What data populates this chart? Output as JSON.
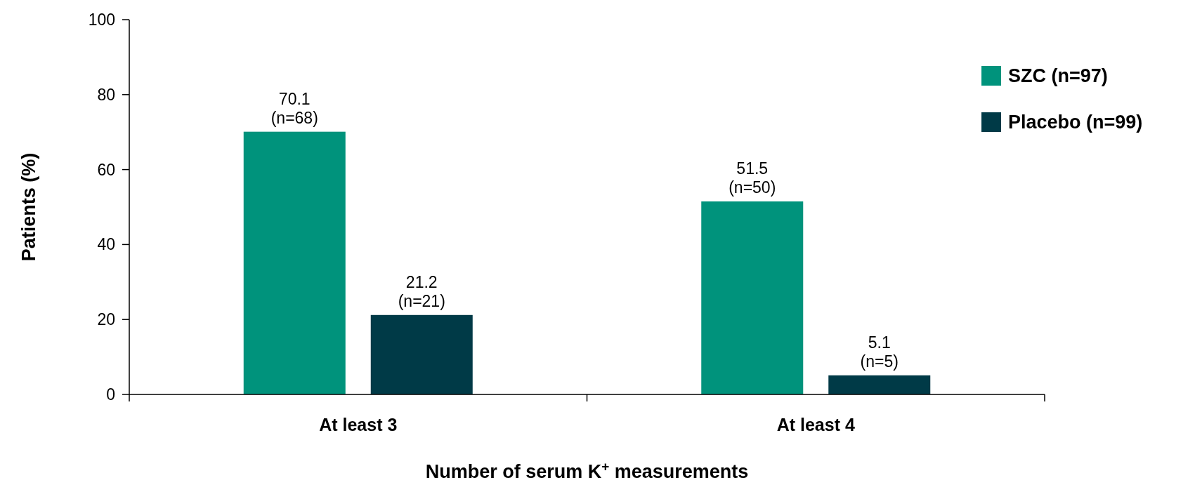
{
  "chart_data": {
    "type": "bar",
    "xlabel": "Number of serum K$^{+}$ measurements",
    "ylabel": "Patients (%)",
    "categories": [
      "At least 3",
      "At least 4"
    ],
    "series": [
      {
        "name": "SZC (n=97)",
        "color": "#00937c",
        "values": [
          70.1,
          51.5
        ],
        "value_labels": [
          "70.1\n(n=68)",
          "51.5\n(n=50)"
        ]
      },
      {
        "name": "Placebo (n=99)",
        "color": "#003a47",
        "values": [
          21.2,
          5.1
        ],
        "value_labels": [
          "21.2\n(n=21)",
          "5.1\n(n=5)"
        ]
      }
    ],
    "ylim": [
      0,
      100
    ],
    "yticks": [
      0,
      20,
      40,
      60,
      80,
      100
    ],
    "grid": false,
    "legend": "top right"
  }
}
